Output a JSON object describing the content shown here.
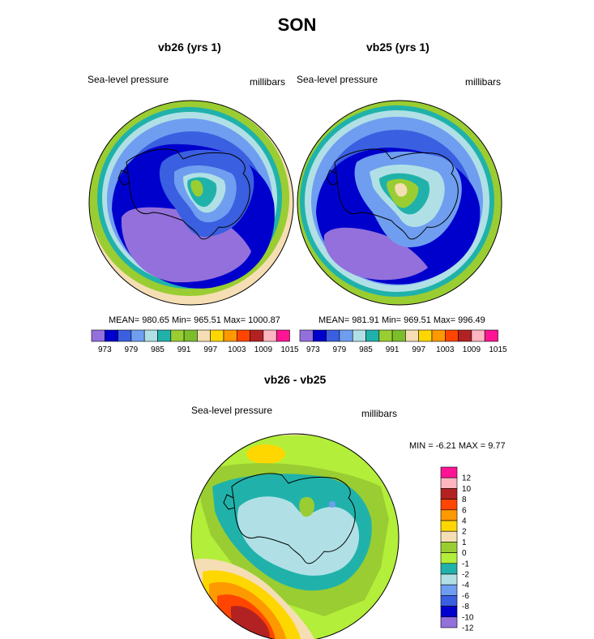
{
  "title": "SON",
  "panels": [
    {
      "title": "vb26 (yrs 1)",
      "left_label": "Sea-level pressure",
      "right_label": "millibars",
      "stats": "MEAN= 980.65  Min= 965.51  Max= 1000.87"
    },
    {
      "title": "vb25 (yrs 1)",
      "left_label": "Sea-level pressure",
      "right_label": "millibars",
      "stats": "MEAN= 981.91  Min= 969.51  Max= 996.49"
    },
    {
      "title": "vb26 - vb25",
      "left_label": "Sea-level pressure",
      "right_label": "millibars",
      "stats": "MIN =  -6.21 MAX =  9.77"
    }
  ],
  "chart_data": [
    {
      "type": "heatmap",
      "title": "vb26 (yrs 1)",
      "variable": "Sea-level pressure",
      "units": "millibars",
      "mean": 980.65,
      "min": 965.51,
      "max": 1000.87,
      "colorbar": {
        "ticks": [
          "973",
          "979",
          "985",
          "991",
          "997",
          "1003",
          "1009",
          "1015"
        ],
        "levels": [
          970,
          973,
          976,
          979,
          982,
          985,
          988,
          991,
          994,
          997,
          1000,
          1003,
          1006,
          1009,
          1012,
          1015
        ],
        "colors": [
          "#9370db",
          "#0000cd",
          "#3a5fe0",
          "#6f9ef0",
          "#b0e0e6",
          "#20b2aa",
          "#9acd32",
          "#7cbd2c",
          "#f5deb3",
          "#ffd700",
          "#ff9900",
          "#ff4500",
          "#b22222",
          "#ffb6c1",
          "#ff1493"
        ]
      }
    },
    {
      "type": "heatmap",
      "title": "vb25 (yrs 1)",
      "variable": "Sea-level pressure",
      "units": "millibars",
      "mean": 981.91,
      "min": 969.51,
      "max": 996.49,
      "colorbar": {
        "ticks": [
          "973",
          "979",
          "985",
          "991",
          "997",
          "1003",
          "1009",
          "1015"
        ],
        "levels": [
          970,
          973,
          976,
          979,
          982,
          985,
          988,
          991,
          994,
          997,
          1000,
          1003,
          1006,
          1009,
          1012,
          1015
        ],
        "colors": [
          "#9370db",
          "#0000cd",
          "#3a5fe0",
          "#6f9ef0",
          "#b0e0e6",
          "#20b2aa",
          "#9acd32",
          "#7cbd2c",
          "#f5deb3",
          "#ffd700",
          "#ff9900",
          "#ff4500",
          "#b22222",
          "#ffb6c1",
          "#ff1493"
        ]
      }
    },
    {
      "type": "heatmap",
      "title": "vb26 - vb25",
      "variable": "Sea-level pressure",
      "units": "millibars",
      "min": -6.21,
      "max": 9.77,
      "colorbar": {
        "ticks": [
          "12",
          "10",
          "8",
          "6",
          "4",
          "2",
          "1",
          "0",
          "-1",
          "-2",
          "-4",
          "-6",
          "-8",
          "-10",
          "-12"
        ],
        "colors": [
          "#ff1493",
          "#ffb6c1",
          "#b22222",
          "#ff4500",
          "#ff9900",
          "#ffd700",
          "#f5deb3",
          "#9acd32",
          "#b3ee3a",
          "#20b2aa",
          "#b0e0e6",
          "#6f9ef0",
          "#3a5fe0",
          "#0000cd",
          "#9370db"
        ]
      }
    }
  ]
}
